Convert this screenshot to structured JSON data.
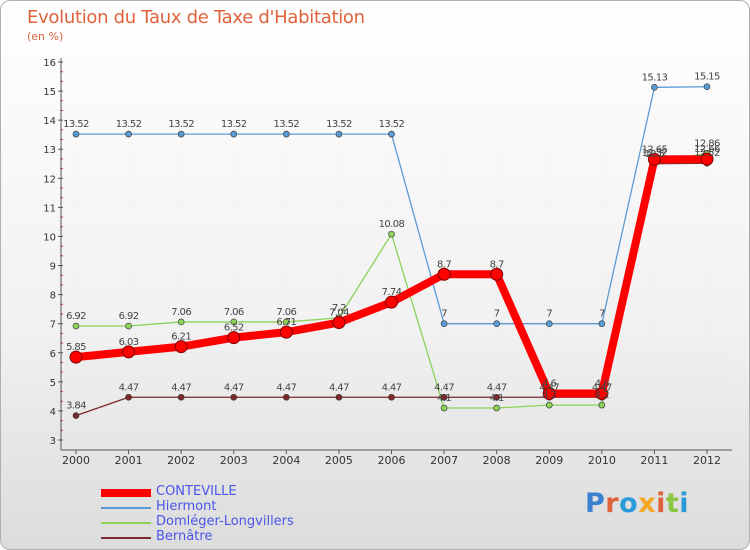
{
  "title": "Evolution du Taux de Taxe d'Habitation",
  "unit": "(en %)",
  "logo_text": "Proxiti",
  "colors": {
    "title": "#e0623a",
    "legend_text": "#4a56e8",
    "axis": "#555555",
    "grid": "#dddddd"
  },
  "chart_data": {
    "type": "line",
    "title": "Evolution du Taux de Taxe d'Habitation",
    "ylabel": "(en %)",
    "xlabel": "",
    "x": [
      "2000",
      "2001",
      "2002",
      "2003",
      "2004",
      "2005",
      "2006",
      "2007",
      "2008",
      "2009",
      "2010",
      "2011",
      "2012"
    ],
    "ylim": [
      3,
      16
    ],
    "yticks": [
      "3",
      "4",
      "5",
      "6",
      "7",
      "8",
      "9",
      "10",
      "11",
      "12",
      "13",
      "14",
      "15",
      "16"
    ],
    "legend_position": "bottom-left",
    "series": [
      {
        "name": "CONTEVILLE",
        "color": "#ff0000",
        "values": [
          5.85,
          6.03,
          6.21,
          6.52,
          6.71,
          7.04,
          7.74,
          8.7,
          8.7,
          4.6,
          4.6,
          12.65,
          12.66
        ],
        "labels": [
          "5.85",
          "6.03",
          "6.21",
          "6.52",
          "6.71",
          "7.04",
          "7.74",
          "8.7",
          "8.7",
          "4.6",
          "4.6",
          "12.65",
          "12.66"
        ]
      },
      {
        "name": "Hiermont",
        "color": "#5b9bd5",
        "values": [
          13.52,
          13.52,
          13.52,
          13.52,
          13.52,
          13.52,
          13.52,
          7,
          7,
          7,
          7,
          15.13,
          15.15
        ],
        "labels": [
          "13.52",
          "13.52",
          "13.52",
          "13.52",
          "13.52",
          "13.52",
          "13.52",
          "7",
          "7",
          "7",
          "7",
          "15.13",
          "15.15"
        ]
      },
      {
        "name": "Domléger-Longvillers",
        "color": "#8cd25a",
        "values": [
          6.92,
          6.92,
          7.06,
          7.06,
          7.06,
          7.2,
          10.08,
          4.1,
          4.1,
          4.2,
          4.2,
          12.52,
          12.86
        ],
        "labels": [
          "6.92",
          "6.92",
          "7.06",
          "7.06",
          "7.06",
          "7.2",
          "10.08",
          "4.1",
          "4.1",
          "4.2",
          "4.2",
          "12.52",
          "12.86"
        ]
      },
      {
        "name": "Bernâtre",
        "color": "#7a2a2a",
        "values": [
          3.84,
          4.47,
          4.47,
          4.47,
          4.47,
          4.47,
          4.47,
          4.47,
          4.47,
          4.47,
          4.47,
          12.5,
          12.52
        ],
        "labels": [
          "3.84",
          "4.47",
          "4.47",
          "4.47",
          "4.47",
          "4.47",
          "4.47",
          "4.47",
          "4.47",
          "4.47",
          "4.47",
          "12.5",
          "12.52"
        ]
      }
    ]
  }
}
